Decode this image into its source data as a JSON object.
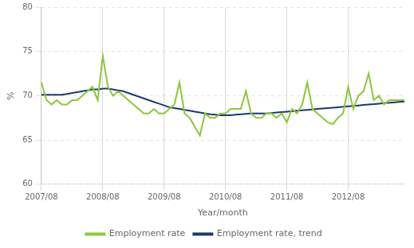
{
  "chart_data": {
    "type": "line",
    "xlabel": "Year/month",
    "ylabel": "%",
    "categories": [
      "2007/08",
      null,
      null,
      null,
      null,
      null,
      null,
      null,
      null,
      null,
      null,
      null,
      "2008/08",
      null,
      null,
      null,
      null,
      null,
      null,
      null,
      null,
      null,
      null,
      null,
      "2009/08",
      null,
      null,
      null,
      null,
      null,
      null,
      null,
      null,
      null,
      null,
      null,
      "2010/08",
      null,
      null,
      null,
      null,
      null,
      null,
      null,
      null,
      null,
      null,
      null,
      "2011/08",
      null,
      null,
      null,
      null,
      null,
      null,
      null,
      null,
      null,
      null,
      null,
      "2012/08",
      null,
      null,
      null,
      null,
      null,
      null,
      null,
      null,
      null,
      null,
      null
    ],
    "series": [
      {
        "name": "Employment rate",
        "color": "#8dc63f",
        "line_style": "solid",
        "values": [
          71.5,
          69.5,
          69.0,
          69.5,
          69.0,
          69.0,
          69.5,
          69.5,
          70.0,
          70.5,
          71.0,
          69.5,
          74.5,
          71.0,
          70.0,
          70.5,
          70.0,
          69.5,
          69.0,
          68.5,
          68.0,
          68.0,
          68.5,
          68.0,
          68.0,
          68.5,
          69.0,
          71.5,
          68.0,
          67.5,
          66.5,
          65.5,
          68.0,
          67.5,
          67.5,
          68.0,
          68.0,
          68.5,
          68.5,
          68.5,
          70.5,
          68.0,
          67.5,
          67.5,
          68.0,
          68.0,
          67.5,
          68.0,
          67.0,
          68.5,
          68.0,
          69.0,
          71.5,
          68.5,
          68.0,
          67.5,
          67.0,
          66.8,
          67.5,
          68.0,
          71.0,
          68.5,
          70.0,
          70.5,
          72.5,
          69.5,
          70.0,
          69.0,
          69.5,
          69.5,
          69.5,
          69.5
        ]
      },
      {
        "name": "Employment rate, trend",
        "color": "#1a3a6b",
        "line_style": "solid",
        "values": [
          70.1,
          70.1,
          70.1,
          70.1,
          70.1,
          70.2,
          70.3,
          70.4,
          70.5,
          70.6,
          70.7,
          70.7,
          70.8,
          70.8,
          70.7,
          70.6,
          70.5,
          70.3,
          70.1,
          69.9,
          69.7,
          69.5,
          69.3,
          69.1,
          68.9,
          68.7,
          68.6,
          68.5,
          68.4,
          68.3,
          68.2,
          68.1,
          68.0,
          67.9,
          67.85,
          67.8,
          67.8,
          67.8,
          67.85,
          67.9,
          67.95,
          68.0,
          68.0,
          68.0,
          68.0,
          68.05,
          68.1,
          68.15,
          68.2,
          68.25,
          68.3,
          68.35,
          68.4,
          68.45,
          68.5,
          68.55,
          68.6,
          68.65,
          68.7,
          68.75,
          68.8,
          68.85,
          68.9,
          68.95,
          69.0,
          69.05,
          69.1,
          69.15,
          69.2,
          69.25,
          69.3,
          69.35
        ]
      }
    ],
    "ylim": [
      60,
      80
    ],
    "yticks": [
      60,
      65,
      70,
      75,
      80
    ],
    "grid": true,
    "legend": "bottom"
  }
}
